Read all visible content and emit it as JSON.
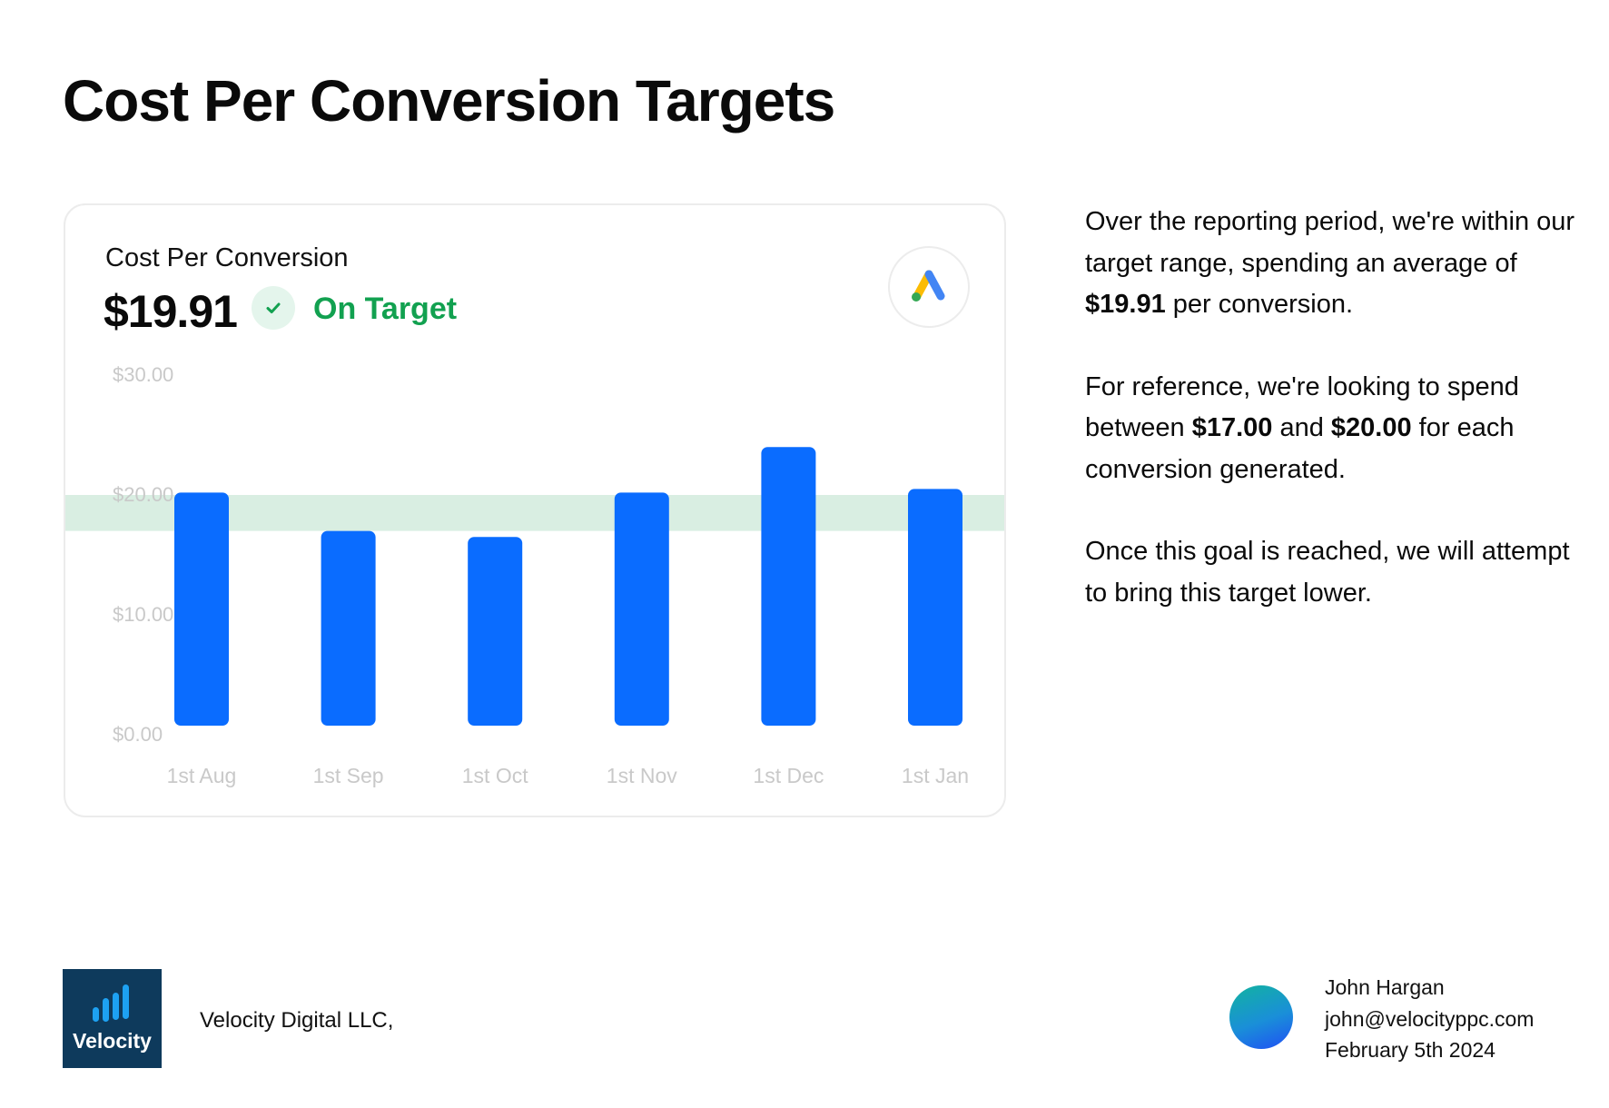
{
  "page": {
    "title": "Cost Per Conversion Targets"
  },
  "card": {
    "label": "Cost Per Conversion",
    "value": "$19.91",
    "status": "On Target",
    "status_icon": "check-icon",
    "logo_icon": "google-ads-icon"
  },
  "chart_data": {
    "type": "bar",
    "categories": [
      "1st Aug",
      "1st Sep",
      "1st Oct",
      "1st Nov",
      "1st Dec",
      "1st Jan"
    ],
    "values": [
      20.2,
      17.0,
      16.5,
      20.2,
      24.0,
      20.5
    ],
    "y_ticks": [
      "$0.00",
      "$10.00",
      "$20.00",
      "$30.00"
    ],
    "y_tick_values": [
      0,
      10,
      20,
      30
    ],
    "ylim": [
      0,
      30
    ],
    "target_band": [
      17,
      20
    ],
    "bar_color": "#0a6cff",
    "band_color": "#d9eee2",
    "grid": false
  },
  "commentary": {
    "p1_pre": "Over the reporting period, we're within our target range, spending an average of ",
    "p1_bold": "$19.91",
    "p1_post": " per conversion.",
    "p2_pre": "For reference, we're looking to spend between ",
    "p2_bold1": "$17.00",
    "p2_mid": " and ",
    "p2_bold2": "$20.00",
    "p2_post": " for each conversion generated.",
    "p3": "Once this goal is reached, we will attempt to bring this target lower."
  },
  "footer": {
    "logo_text": "Velocity",
    "logo_icon": "velocity-bars-icon",
    "company": "Velocity Digital LLC,",
    "contact_name": "John Hargan",
    "contact_email": "john@velocityppc.com",
    "date": "February 5th 2024"
  }
}
